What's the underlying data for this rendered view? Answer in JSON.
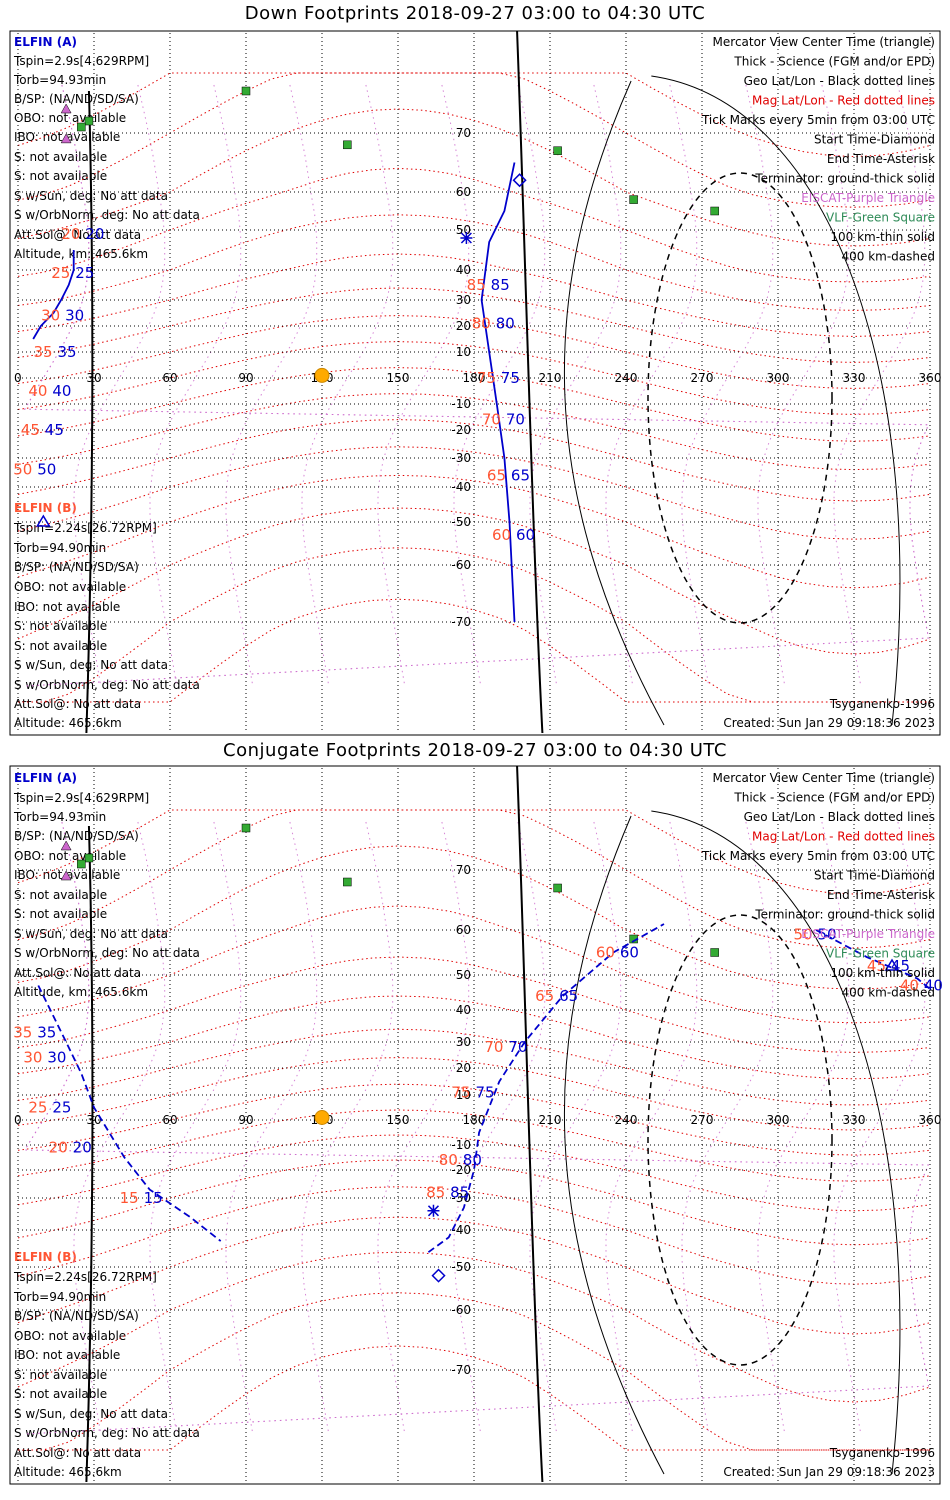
{
  "panels": [
    {
      "title": "Down Footprints 2018-09-27 03:00 to 04:30 UTC",
      "elfin_a": {
        "name": "ELFIN (A)",
        "lines": [
          "Tspin=2.9s[4.629RPM]",
          "Torb=94.93min",
          "B/SP: (NA/ND/SD/SA)",
          "OBO: not available",
          "IBO: not available",
          "S: not available",
          "S: not available",
          "S w/Sun, deg: No att data",
          "S w/OrbNorm, deg: No att data",
          "Att.Sol@: No att data",
          "Altitude, km: 465.6km"
        ]
      },
      "elfin_b": {
        "name": "ELFIN (B)",
        "lines": [
          "Tspin=2.24s[26.72RPM]",
          "Torb=94.90min",
          "B/SP: (NA/ND/SD/SA)",
          "OBO: not available",
          "IBO: not available",
          "S: not available",
          "S: not available",
          "S w/Sun, deg: No att data",
          "S w/OrbNorm, deg: No att data",
          "Att.Sol@: No att data",
          "Altitude: 465.6km"
        ]
      },
      "model": "Tsyganenko-1996",
      "created": "Created: Sun Jan 29 09:18:36 2023"
    },
    {
      "title": "Conjugate Footprints 2018-09-27 03:00 to 04:30 UTC",
      "elfin_a": {
        "name": "ELFIN (A)",
        "lines": [
          "Tspin=2.9s[4.629RPM]",
          "Torb=94.93min",
          "B/SP: (NA/ND/SD/SA)",
          "OBO: not available",
          "IBO: not available",
          "S: not available",
          "S: not available",
          "S w/Sun, deg: No att data",
          "S w/OrbNorm, deg: No att data",
          "Att.Sol@: No att data",
          "Altitude, km: 465.6km"
        ]
      },
      "elfin_b": {
        "name": "ELFIN (B)",
        "lines": [
          "Tspin=2.24s[26.72RPM]",
          "Torb=94.90min",
          "B/SP: (NA/ND/SD/SA)",
          "OBO: not available",
          "IBO: not available",
          "S: not available",
          "S: not available",
          "S w/Sun, deg: No att data",
          "S w/OrbNorm, deg: No att data",
          "Att.Sol@: No att data",
          "Altitude: 465.6km"
        ]
      },
      "model": "Tsyganenko-1996",
      "created": "Created: Sun Jan 29 09:18:36 2023"
    }
  ],
  "legend": [
    {
      "text": "Mercator View Center Time (triangle)",
      "color": "#000000"
    },
    {
      "text": "Thick - Science (FGM and/or EPD)",
      "color": "#000000"
    },
    {
      "text": "Geo Lat/Lon - Black dotted lines",
      "color": "#000000"
    },
    {
      "text": "Mag Lat/Lon - Red dotted lines",
      "color": "#e00000"
    },
    {
      "text": "Tick Marks every 5min from 03:00 UTC",
      "color": "#000000"
    },
    {
      "text": "Start Time-Diamond",
      "color": "#000000"
    },
    {
      "text": "End Time-Asterisk",
      "color": "#000000"
    },
    {
      "text": "Terminator: ground-thick solid",
      "color": "#000000"
    },
    {
      "text": "EISCAT-Purple Triangle",
      "color": "#cc66cc"
    },
    {
      "text": "VLF-Green Square",
      "color": "#2e8b57"
    },
    {
      "text": "100 km-thin solid",
      "color": "#000000"
    },
    {
      "text": "400 km-dashed",
      "color": "#000000"
    }
  ],
  "colors": {
    "elfin_a": "#0000cc",
    "elfin_b": "#ff5533",
    "geo_grid": "#000000",
    "mag_grid": "#e00000",
    "eiscat": "#cc66cc",
    "vlf": "#33aa33",
    "sun": "#ffaa00"
  },
  "chart_data": [
    {
      "type": "scatter",
      "title": "Down Footprints 2018-09-27 03:00 to 04:30 UTC",
      "xticks": [
        0,
        30,
        60,
        90,
        120,
        150,
        180,
        210,
        240,
        270,
        300,
        330,
        360
      ],
      "yticks": [
        70,
        60,
        50,
        40,
        30,
        20,
        10,
        -10,
        -20,
        -30,
        -40,
        -50,
        -60,
        -70
      ],
      "xlim": [
        0,
        360
      ],
      "ylim": [
        -80,
        80
      ],
      "vlf_stations": [
        [
          90,
          77
        ],
        [
          130,
          68
        ],
        [
          28,
          72
        ],
        [
          25,
          71
        ],
        [
          213,
          67
        ],
        [
          243,
          58
        ],
        [
          275,
          55
        ]
      ],
      "eiscat_stations": [
        [
          19,
          74
        ],
        [
          19,
          69
        ]
      ],
      "sun": [
        120,
        1
      ],
      "series": [
        {
          "name": "ELFIN (A)",
          "points": [
            [
              22,
              45
            ],
            [
              22,
              40
            ],
            [
              20,
              35
            ],
            [
              17,
              30
            ],
            [
              14,
              25
            ],
            [
              9,
              20
            ],
            [
              6,
              15
            ]
          ],
          "tick_labels": [
            {
              "label": "20",
              "lon": 25,
              "lat": 49
            },
            {
              "label": "25",
              "lon": 21,
              "lat": 39
            },
            {
              "label": "30",
              "lon": 17,
              "lat": 24
            },
            {
              "label": "35",
              "lon": 14,
              "lat": 10
            },
            {
              "label": "40",
              "lon": 12,
              "lat": -5
            },
            {
              "label": "45",
              "lon": 9,
              "lat": -20
            },
            {
              "label": "50",
              "lon": 6,
              "lat": -34
            }
          ]
        },
        {
          "name": "ELFIN (A) conjugate trace",
          "points": [
            [
              196,
              65
            ],
            [
              192,
              55
            ],
            [
              186,
              47
            ],
            [
              183,
              30
            ],
            [
              186,
              10
            ],
            [
              189,
              -10
            ],
            [
              192,
              -30
            ],
            [
              194,
              -50
            ],
            [
              196,
              -70
            ]
          ],
          "tick_labels": [
            {
              "label": "85",
              "lon": 185,
              "lat": 35
            },
            {
              "label": "80",
              "lon": 187,
              "lat": 21
            },
            {
              "label": "75",
              "lon": 189,
              "lat": 0
            },
            {
              "label": "70",
              "lon": 191,
              "lat": -16
            },
            {
              "label": "65",
              "lon": 193,
              "lat": -36
            },
            {
              "label": "60",
              "lon": 195,
              "lat": -53
            }
          ]
        }
      ]
    },
    {
      "type": "scatter",
      "title": "Conjugate Footprints 2018-09-27 03:00 to 04:30 UTC",
      "xticks": [
        0,
        30,
        60,
        90,
        120,
        150,
        180,
        210,
        240,
        270,
        300,
        330,
        360
      ],
      "yticks": [
        70,
        60,
        50,
        40,
        30,
        20,
        10,
        -10,
        -20,
        -30,
        -40,
        -50,
        -60,
        -70
      ],
      "xlim": [
        0,
        360
      ],
      "ylim": [
        -80,
        80
      ],
      "series": [
        {
          "name": "ELFIN (A)",
          "points": [
            [
              162,
              -46
            ],
            [
              170,
              -42
            ],
            [
              176,
              -33
            ],
            [
              180,
              -20
            ],
            [
              182,
              -5
            ],
            [
              190,
              15
            ],
            [
              200,
              30
            ],
            [
              215,
              44
            ],
            [
              235,
              55
            ],
            [
              255,
              61
            ]
          ],
          "tick_labels": [
            {
              "label": "85",
              "lon": 169,
              "lat": -28
            },
            {
              "label": "80",
              "lon": 174,
              "lat": -16
            },
            {
              "label": "75",
              "lon": 179,
              "lat": 11
            },
            {
              "label": "70",
              "lon": 192,
              "lat": 28
            },
            {
              "label": "65",
              "lon": 212,
              "lat": 44
            },
            {
              "label": "60",
              "lon": 236,
              "lat": 55
            }
          ]
        },
        {
          "name": "ELFIN (A) right trace",
          "points": [
            [
              315,
              60
            ],
            [
              335,
              54
            ],
            [
              355,
              49
            ],
            [
              360,
              46
            ]
          ],
          "tick_labels": [
            {
              "label": "50",
              "lon": 314,
              "lat": 59
            },
            {
              "label": "45",
              "lon": 343,
              "lat": 52
            },
            {
              "label": "40",
              "lon": 356,
              "lat": 47
            }
          ]
        },
        {
          "name": "ELFIN (A) left trace",
          "points": [
            [
              8,
              47
            ],
            [
              14,
              38
            ],
            [
              19,
              30
            ],
            [
              25,
              18
            ],
            [
              30,
              5
            ],
            [
              42,
              -15
            ],
            [
              52,
              -27
            ],
            [
              68,
              -36
            ],
            [
              80,
              -43
            ]
          ],
          "tick_labels": [
            {
              "label": "35",
              "lon": 6,
              "lat": 33
            },
            {
              "label": "30",
              "lon": 10,
              "lat": 24
            },
            {
              "label": "25",
              "lon": 12,
              "lat": 5
            },
            {
              "label": "20",
              "lon": 20,
              "lat": -11
            },
            {
              "label": "15",
              "lon": 48,
              "lat": -30
            }
          ]
        }
      ]
    }
  ]
}
